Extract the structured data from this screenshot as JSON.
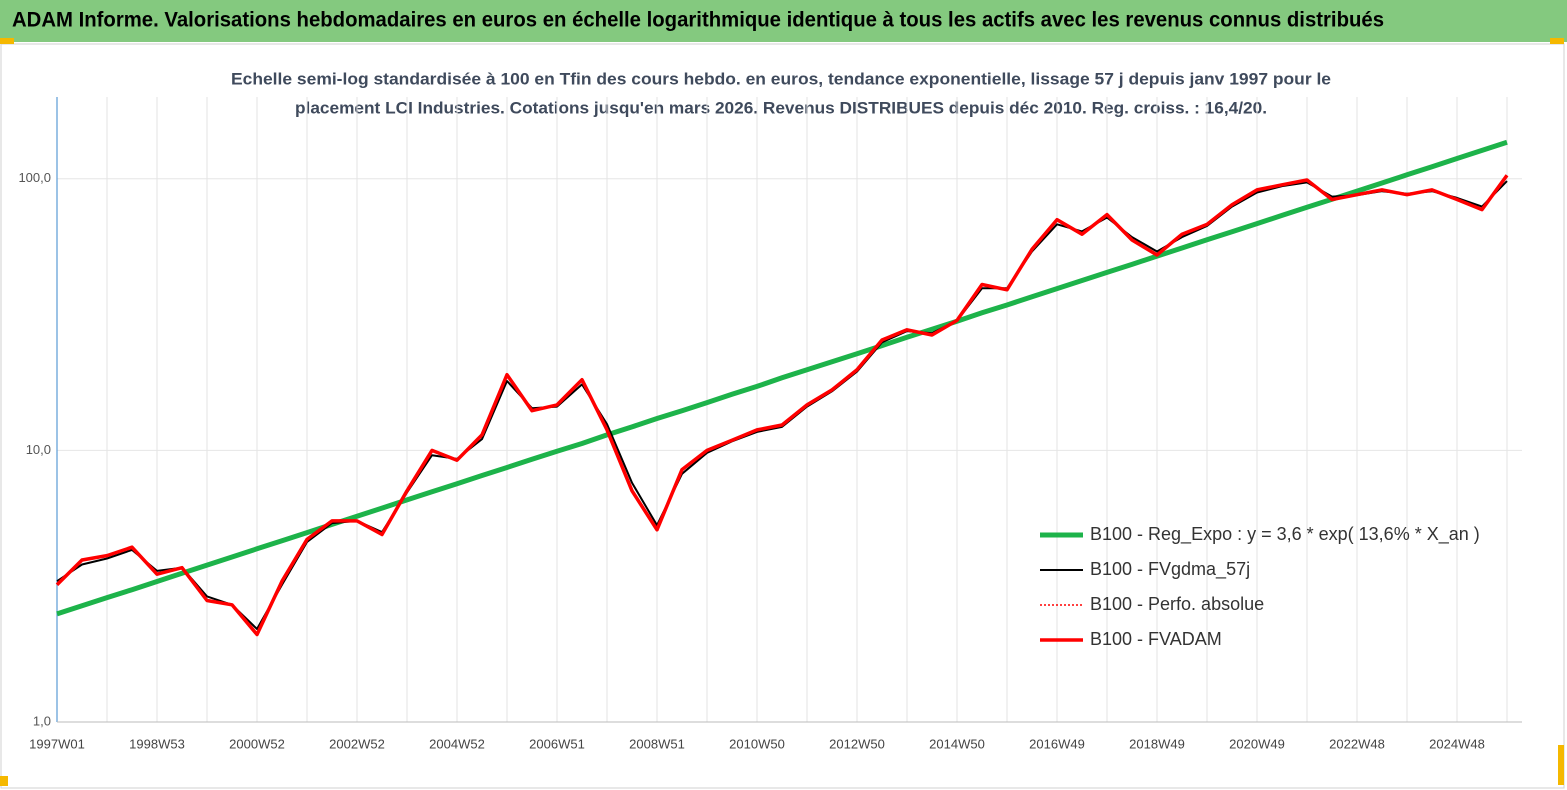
{
  "chart_data": {
    "type": "line",
    "title": "ADAM Informe. Valorisations hebdomadaires en euros en échelle logarithmique identique à tous les actifs avec les revenus connus distribués",
    "subtitle": [
      "Echelle semi-log standardisée à 100 en Tfin des cours hebdo. en euros, tendance exponentielle, lissage 57 j depuis janv 1997 pour le",
      "placement LCI Industries. Cotations jusqu'en mars 2026. Revenus DISTRIBUES depuis déc 2010. Reg. croiss. : 16,4/20."
    ],
    "categories": [
      "1997W01",
      null,
      null,
      null,
      "1998W53",
      null,
      null,
      null,
      "2000W52",
      null,
      null,
      null,
      "2002W52",
      null,
      null,
      null,
      "2004W52",
      null,
      null,
      null,
      "2006W51",
      null,
      null,
      null,
      "2008W51",
      null,
      null,
      null,
      "2010W50",
      null,
      null,
      null,
      "2012W50",
      null,
      null,
      null,
      "2014W50",
      null,
      null,
      null,
      "2016W49",
      null,
      null,
      null,
      "2018W49",
      null,
      null,
      null,
      "2020W49",
      null,
      null,
      null,
      "2022W48",
      null,
      null,
      null,
      "2024W48",
      null,
      null
    ],
    "log_scale": true,
    "ylim": [
      1,
      200
    ],
    "yticks": [
      {
        "value": 1,
        "label": "1,0"
      },
      {
        "value": 10,
        "label": "10,0"
      },
      {
        "value": 100,
        "label": "100,0"
      }
    ],
    "grid": true,
    "legend_position": "right",
    "series": [
      {
        "name": "B100 - Reg_Expo : y = 3,6 * exp( 13,6% *  X_an )",
        "color": "#1db34a",
        "width": 5,
        "style": "solid",
        "values": [
          2.5,
          2.68,
          2.87,
          3.07,
          3.29,
          3.53,
          3.78,
          4.05,
          4.34,
          4.65,
          4.98,
          5.34,
          5.72,
          6.13,
          6.57,
          7.04,
          7.54,
          8.08,
          8.65,
          9.27,
          9.93,
          10.6,
          11.4,
          12.2,
          13.1,
          14.0,
          15.0,
          16.1,
          17.2,
          18.5,
          19.8,
          21.2,
          22.7,
          24.3,
          26.1,
          27.9,
          29.9,
          32.1,
          34.3,
          36.8,
          39.4,
          42.2,
          45.2,
          48.4,
          51.9,
          55.6,
          59.6,
          63.8,
          68.4,
          73.3,
          78.5,
          84.1,
          90.1,
          96.5,
          103.4,
          110.8,
          118.7,
          127.2,
          136.3
        ]
      },
      {
        "name": "B100 - FVgdma_57j",
        "color": "#000000",
        "width": 2,
        "style": "solid",
        "values": [
          3.3,
          3.8,
          4.0,
          4.3,
          3.6,
          3.7,
          2.9,
          2.7,
          2.2,
          3.2,
          4.6,
          5.4,
          5.5,
          5.0,
          7.0,
          9.6,
          9.3,
          11.0,
          18.0,
          14.3,
          14.5,
          17.5,
          12.5,
          7.6,
          5.3,
          8.2,
          9.8,
          10.8,
          11.7,
          12.2,
          14.5,
          16.5,
          19.5,
          25.0,
          27.5,
          27.0,
          30.0,
          39.5,
          39.5,
          54.0,
          68.0,
          64.0,
          72.0,
          61.0,
          54.0,
          61.0,
          67.0,
          79.0,
          89.0,
          94.0,
          97.0,
          86.0,
          87.0,
          90.0,
          88.0,
          90.0,
          85.0,
          79.0,
          98.0
        ]
      },
      {
        "name": "B100 - Perfo. absolue",
        "color": "#ff0000",
        "width": 1.5,
        "style": "dotted",
        "values": [
          3.2,
          3.95,
          4.1,
          4.4,
          3.5,
          3.7,
          2.8,
          2.7,
          2.1,
          3.3,
          4.7,
          5.5,
          5.5,
          4.9,
          7.1,
          10.0,
          9.2,
          11.4,
          19.0,
          14.0,
          14.7,
          18.2,
          11.9,
          7.1,
          5.1,
          8.5,
          10.0,
          10.9,
          11.9,
          12.4,
          14.7,
          16.7,
          19.8,
          25.5,
          27.8,
          26.6,
          30.1,
          40.8,
          39.0,
          55.0,
          70.7,
          62.5,
          73.8,
          59.5,
          52.4,
          62.5,
          67.9,
          80.2,
          91.0,
          95.0,
          99.0,
          83.9,
          87.4,
          91.0,
          87.4,
          91.0,
          83.9,
          77.0,
          103.0
        ]
      },
      {
        "name": "B100 - FVADAM",
        "color": "#ff0000",
        "width": 3.5,
        "style": "solid",
        "values": [
          3.2,
          3.95,
          4.1,
          4.4,
          3.5,
          3.7,
          2.8,
          2.7,
          2.1,
          3.3,
          4.7,
          5.5,
          5.5,
          4.9,
          7.1,
          10.0,
          9.2,
          11.4,
          19.0,
          14.0,
          14.7,
          18.2,
          11.9,
          7.1,
          5.1,
          8.5,
          10.0,
          10.9,
          11.9,
          12.4,
          14.7,
          16.7,
          19.8,
          25.5,
          27.8,
          26.6,
          30.1,
          40.8,
          39.0,
          55.0,
          70.7,
          62.5,
          73.8,
          59.5,
          52.4,
          62.5,
          67.9,
          80.2,
          91.0,
          95.0,
          99.0,
          83.9,
          87.4,
          91.0,
          87.4,
          91.0,
          83.9,
          77.0,
          103.0
        ]
      }
    ]
  }
}
